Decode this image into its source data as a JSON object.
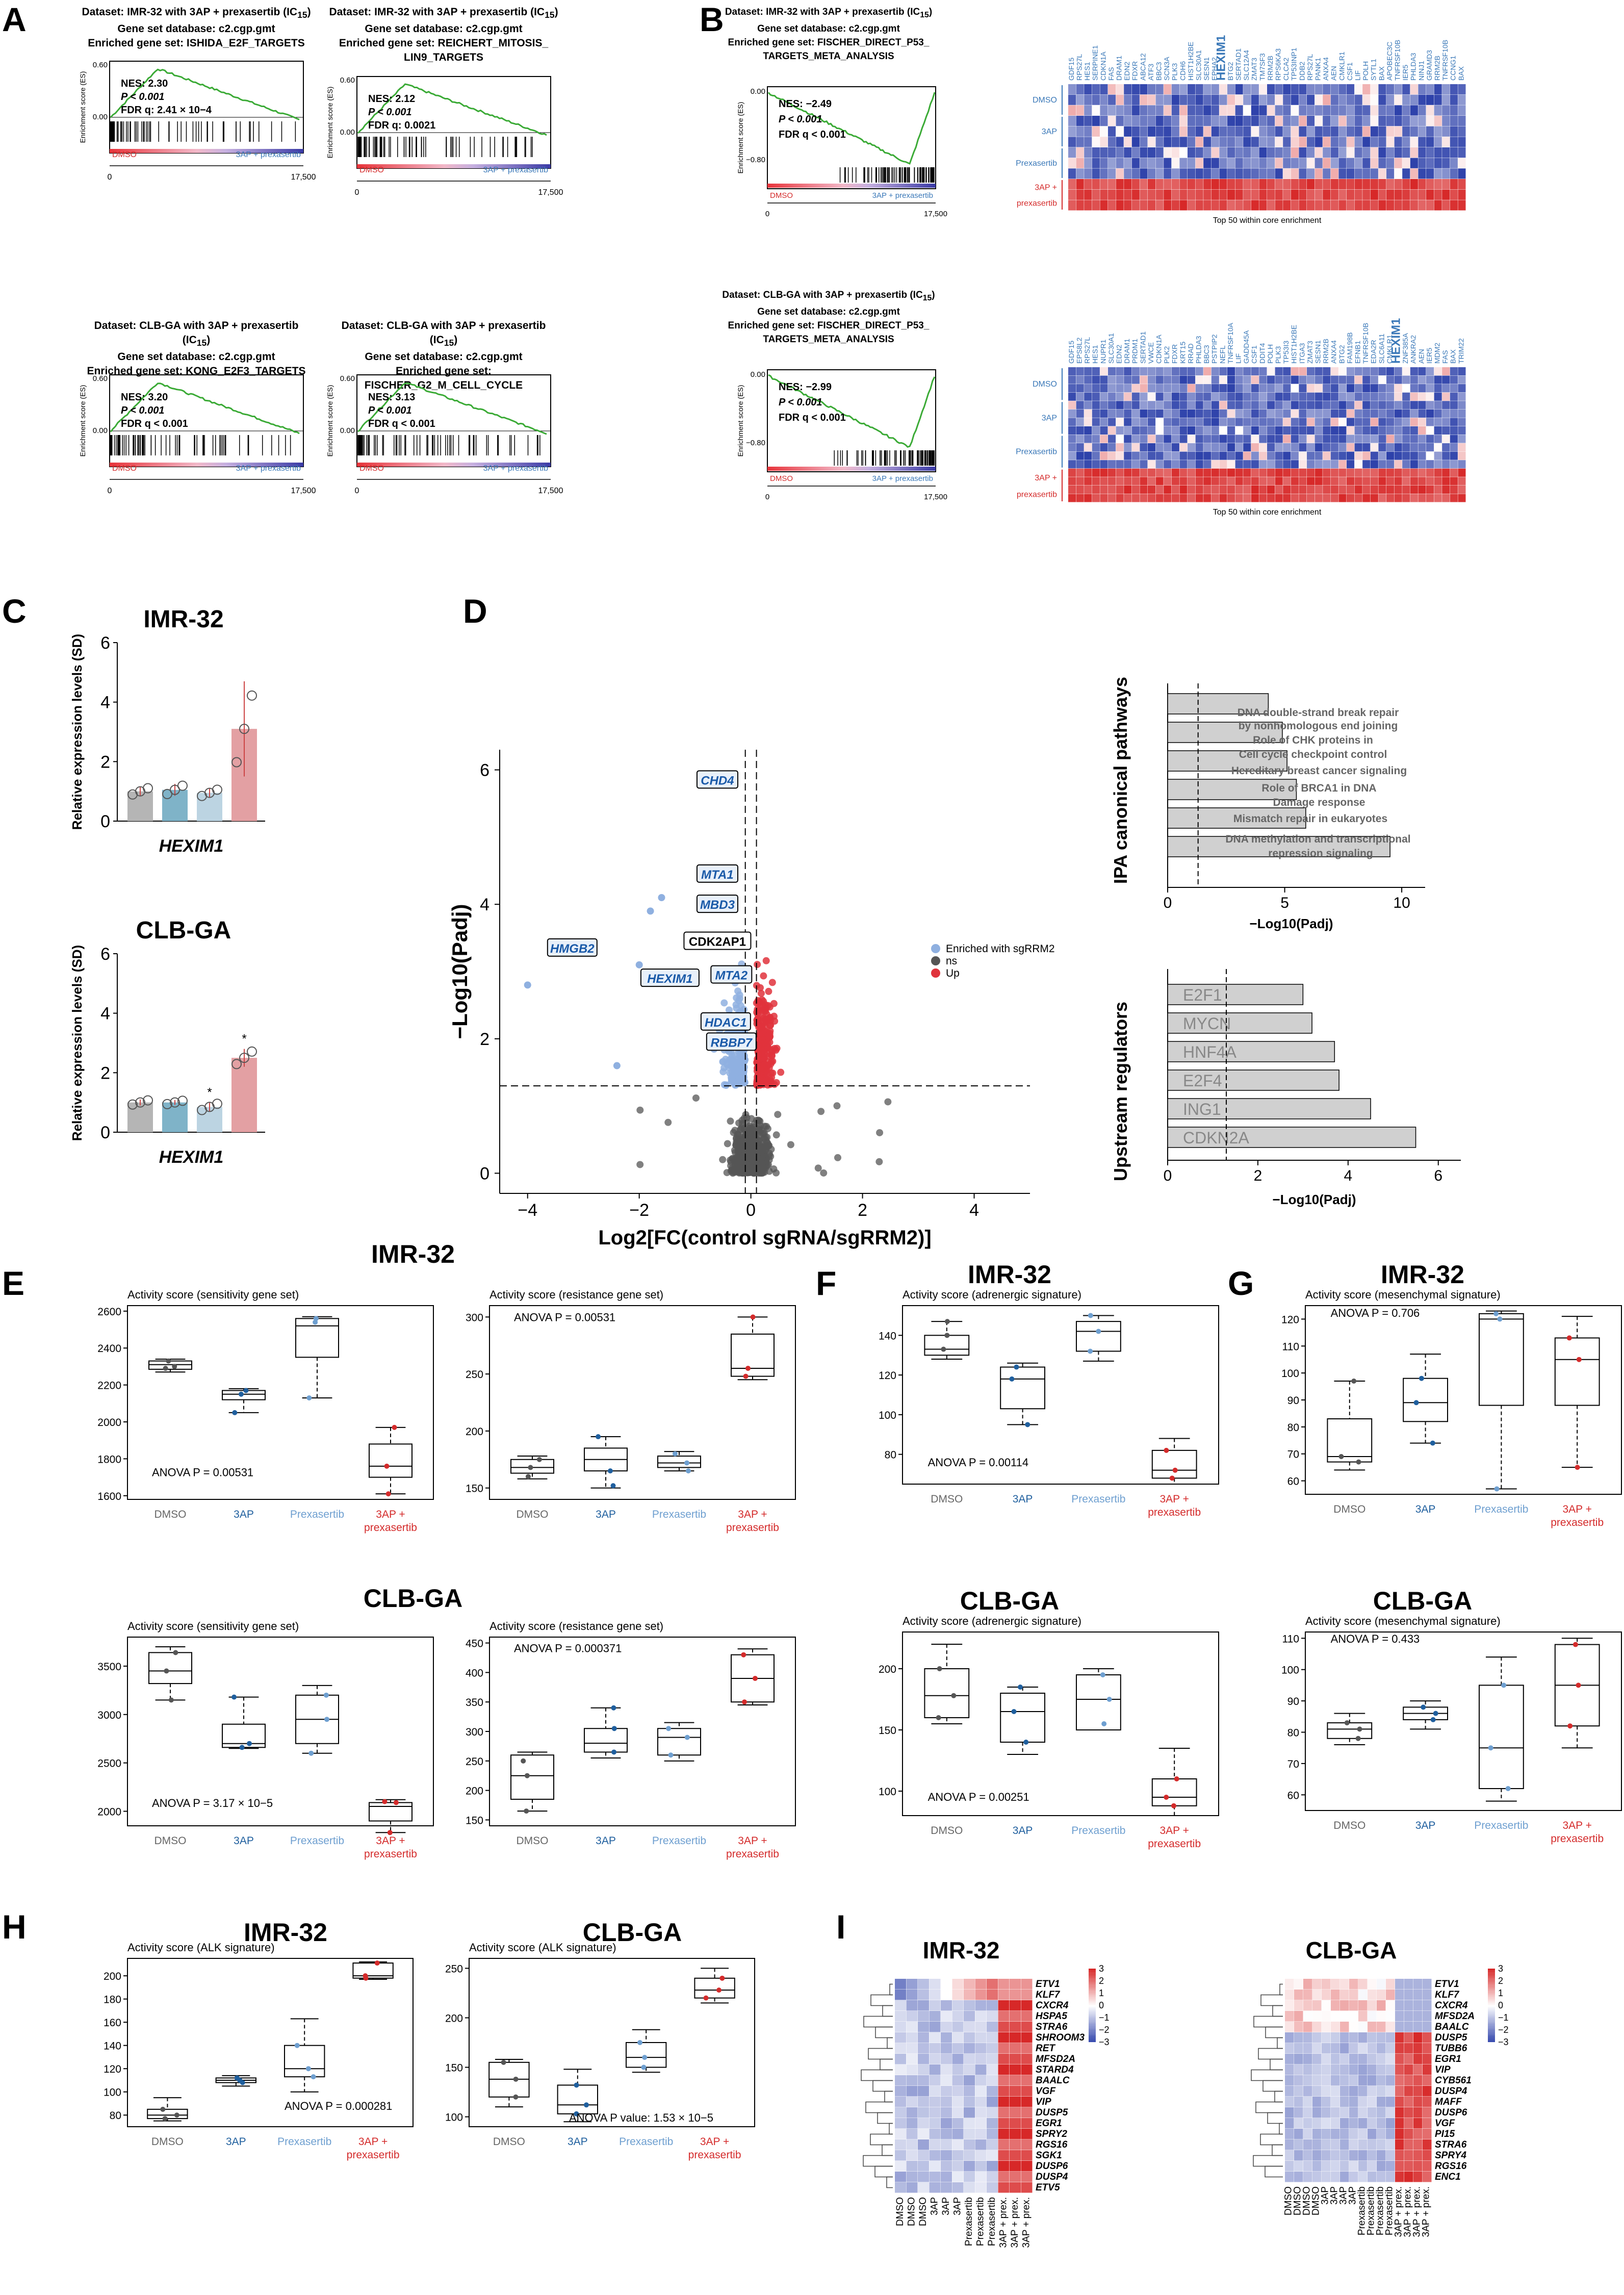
{
  "figure_letters": [
    "A",
    "B",
    "C",
    "D",
    "E",
    "F",
    "G",
    "H",
    "I"
  ],
  "panelA": {
    "plots": [
      {
        "dataset": "Dataset: IMR-32 with 3AP + prexasertib (IC",
        "ic": "15",
        ")": ")",
        "database": "Gene set database: c2.cgp.gmt",
        "geneset": "Enriched gene set: ISHIDA_E2F_TARGETS",
        "nes": "NES: 2.30",
        "p": "P < 0.001",
        "fdr": "FDR q: 2.41 × 10−4",
        "ymax": "0.60",
        "yzero": "0.00"
      },
      {
        "dataset": "Dataset: IMR-32 with 3AP + prexasertib (IC",
        "ic": "15",
        "database": "Gene set database: c2.cgp.gmt",
        "geneset": "Enriched gene set: REICHERT_MITOSIS_",
        "geneset2": "LIN9_TARGETS",
        "nes": "NES: 2.12",
        "p": "P < 0.001",
        "fdr": "FDR q: 0.0021",
        "ymax": "0.60",
        "yzero": "0.00"
      },
      {
        "dataset": "Dataset: CLB-GA with 3AP + prexasertib (IC",
        "ic": "15",
        "database": "Gene set database: c2.cgp.gmt",
        "geneset": "Enriched gene set: KONG_E2F3_TARGETS",
        "nes": "NES: 3.20",
        "p": "P < 0.001",
        "fdr": "FDR q < 0.001",
        "ymax": "0.60",
        "yzero": "0.00"
      },
      {
        "dataset": "Dataset: CLB-GA with 3AP + prexasertib (IC",
        "ic": "15",
        "database": "Gene set database: c2.cgp.gmt",
        "geneset": "Enriched gene set: FISCHER_G2_M_CELL_CYCLE",
        "nes": "NES: 3.13",
        "p": "P < 0.001",
        "fdr": "FDR q < 0.001",
        "ymax": "0.60",
        "yzero": "0.00"
      }
    ],
    "ylabel": "Enrichment score (ES)",
    "dmso": "DMSO",
    "treat": "3AP + prexasertib",
    "x0": "0",
    "x1": "17,500"
  },
  "panelB": {
    "plots": [
      {
        "dataset": "Dataset: IMR-32 with 3AP + prexasertib (IC",
        "ic": "15",
        "database": "Gene set database: c2.cgp.gmt",
        "geneset": "Enriched gene set: FISCHER_DIRECT_P53_",
        "geneset2": "TARGETS_META_ANALYSIS",
        "nes": "NES: −2.49",
        "p": "P < 0.001",
        "fdr": "FDR q < 0.001",
        "ymax": "0.00",
        "ymin": "−0.80"
      },
      {
        "dataset": "Dataset: CLB-GA with 3AP + prexasertib (IC",
        "ic": "15",
        "database": "Gene set database: c2.cgp.gmt",
        "geneset": "Enriched gene set: FISCHER_DIRECT_P53_",
        "geneset2": "TARGETS_META_ANALYSIS",
        "nes": "NES: −2.99",
        "p": "P < 0.001",
        "fdr": "FDR q < 0.001",
        "ymax": "0.00",
        "ymin": "−0.80"
      }
    ],
    "heatmap_caption": "Top 50 within core enrichment",
    "groups": [
      "DMSO",
      "3AP",
      "Prexasertib",
      "3AP +",
      "prexasertib"
    ],
    "genes_top": [
      "GDF15",
      "RPS27L",
      "HES1",
      "SERPINE1",
      "CDKN1A",
      "FAS",
      "DRAM1",
      "EDN2",
      "FDXR",
      "ABCA12",
      "ATF3",
      "BBC3",
      "SCN3A",
      "PLK3",
      "CDH6",
      "HIST1H2BE",
      "SLC30A1",
      "SESN1",
      "EPHA2",
      "HEXIM1",
      "BTG2",
      "SERTAD1",
      "SLC12A4",
      "ZMAT3",
      "TM7SF3",
      "RRM2B",
      "RPS6KA3",
      "CLCA2",
      "TP53INP1",
      "DDB2",
      "RPS27L",
      "PANK1",
      "ANXA4",
      "AEN",
      "CMKLR1",
      "CSF1",
      "LIF",
      "POLH",
      "SYTL1",
      "BAX",
      "APOBEC3C",
      "TNFRSF10B",
      "IER5",
      "PHLDA3",
      "NINJ1",
      "GRAMD3",
      "RRM2B",
      "TNFRSF10B",
      "CCNG1",
      "BAX"
    ],
    "genes_bottom": [
      "GDF15",
      "EPS8L2",
      "RPS27L",
      "HES1",
      "NUPR1",
      "SLC30A1",
      "EDN2",
      "DRAM1",
      "PRDM1",
      "SERTAD1",
      "VWCE",
      "CDKN1A",
      "PLK2",
      "FDXR",
      "KRT15",
      "RRAD",
      "PHLDA3",
      "BBC3",
      "PSTPIP2",
      "NEFL",
      "TNFRSF10A",
      "LIF",
      "GADD45A",
      "CSF1",
      "DDIT4",
      "POLH",
      "PLK3",
      "TP53I3",
      "HIST1H2BE",
      "ITGA3",
      "ZMAT3",
      "SESN1",
      "RRM2B",
      "ANXA4",
      "BTG2",
      "FAM198B",
      "EFNB1",
      "TNFRSF10B",
      "EDA2R",
      "SLC6A11",
      "CMKLR1",
      "HEXIM1",
      "ZNF385A",
      "ANKRA2",
      "AEN",
      "IER5",
      "MDM2",
      "FAS",
      "BAX",
      "TRIM22"
    ],
    "x0": "0",
    "x1": "17,500"
  },
  "panelC": {
    "titles": [
      "IMR-32",
      "CLB-GA"
    ],
    "ylabel": "Relative expression levels (SD)",
    "gene": "HEXIM1",
    "yticks": [
      "0",
      "2",
      "4",
      "6"
    ],
    "chart_data": [
      {
        "type": "bar",
        "title": "IMR-32",
        "xlabel": "HEXIM1",
        "ylabel": "Relative expression levels (SD)",
        "categories": [
          "DMSO",
          "3AP",
          "Prexasertib",
          "3AP + prexasertib"
        ],
        "values": [
          1.0,
          1.05,
          0.95,
          3.1
        ],
        "errors": [
          0.15,
          0.2,
          0.15,
          1.6
        ],
        "ylim": [
          0,
          6
        ]
      },
      {
        "type": "bar",
        "title": "CLB-GA",
        "xlabel": "HEXIM1",
        "ylabel": "Relative expression levels (SD)",
        "categories": [
          "DMSO",
          "3AP",
          "Prexasertib",
          "3AP + prexasertib"
        ],
        "values": [
          1.0,
          1.0,
          0.85,
          2.5
        ],
        "errors": [
          0.1,
          0.08,
          0.15,
          0.3
        ],
        "ylim": [
          0,
          6
        ]
      }
    ],
    "star": "*"
  },
  "panelD": {
    "ylabel": "−Log10(Padj)",
    "xlabel": "Log2[FC(control sgRNA/sgRRM2)]",
    "xticks": [
      "−4",
      "−2",
      "0",
      "2",
      "4"
    ],
    "yticks": [
      "0",
      "2",
      "4",
      "6"
    ],
    "legend": [
      "Enriched with sgRRM2",
      "ns",
      "Up"
    ],
    "labels": [
      "CHD4",
      "MTA1",
      "MBD3",
      "CDK2AP1",
      "HMGB2",
      "MTA2",
      "HEXIM1",
      "HDAC1",
      "RBBP7"
    ],
    "ipa_title": "IPA canonical pathways",
    "ipa_terms": [
      "DNA double-strand break repair",
      "by nonhomologous end joining",
      "Role of CHK proteins in",
      "Cell cycle checkpoint control",
      "Hereditary breast cancer signaling",
      "Role of BRCA1 in DNA",
      "Damage response",
      "Mismatch repair in eukaryotes",
      "DNA methylation and transcriptional",
      "repression signaling"
    ],
    "ipa_xticks": [
      "0",
      "5",
      "10"
    ],
    "ipa_xlabel": "−Log10(Padj)",
    "ur_title": "Upstream regulators",
    "ur_terms": [
      "E2F1",
      "MYCN",
      "HNF4A",
      "E2F4",
      "ING1",
      "CDKN2A"
    ],
    "ur_xticks": [
      "0",
      "2",
      "4",
      "6"
    ],
    "ur_xlabel": "−Log10(Padj)",
    "ipa_chart": {
      "type": "bar",
      "values": [
        4.3,
        4.9,
        5.1,
        5.5,
        5.9,
        9.5
      ]
    },
    "ur_chart": {
      "type": "bar",
      "categories": [
        "E2F1",
        "MYCN",
        "HNF4A",
        "E2F4",
        "ING1",
        "CDKN2A"
      ],
      "values": [
        3.0,
        3.2,
        3.7,
        3.8,
        4.5,
        5.5
      ]
    }
  },
  "boxes": {
    "cats": [
      "DMSO",
      "3AP",
      "Prexasertib",
      "3AP +",
      "prexasertib"
    ],
    "E": {
      "title1": "IMR-32",
      "title2": "CLB-GA",
      "p1": {
        "title": "Activity score (sensitivity gene set)",
        "anova": "ANOVA P = 0.00531",
        "yticks": [
          "1600",
          "1800",
          "2000",
          "2200",
          "2400",
          "2600"
        ]
      },
      "p2": {
        "title": "Activity score (resistance gene set)",
        "anova": "ANOVA P = 0.00531",
        "yticks": [
          "150",
          "200",
          "250",
          "300"
        ]
      },
      "p3": {
        "title": "Activity score (sensitivity gene set)",
        "anova": "ANOVA P = 3.17 × 10−5",
        "yticks": [
          "2000",
          "2500",
          "3000",
          "3500"
        ]
      },
      "p4": {
        "title": "Activity score (resistance gene set)",
        "anova": "ANOVA P = 0.000371",
        "yticks": [
          "150",
          "200",
          "250",
          "300",
          "350",
          "400",
          "450"
        ]
      }
    },
    "F": {
      "title1": "IMR-32",
      "title2": "CLB-GA",
      "p1": {
        "title": "Activity score (adrenergic signature)",
        "anova": "ANOVA P = 0.00114",
        "yticks": [
          "80",
          "100",
          "120",
          "140"
        ]
      },
      "p2": {
        "title": "Activity score (adrenergic signature)",
        "anova": "ANOVA P = 0.00251",
        "yticks": [
          "100",
          "150",
          "200"
        ]
      }
    },
    "G": {
      "title1": "IMR-32",
      "title2": "CLB-GA",
      "p1": {
        "title": "Activity score (mesenchymal signature)",
        "anova": "ANOVA P = 0.706",
        "yticks": [
          "60",
          "70",
          "80",
          "90",
          "100",
          "110",
          "120"
        ]
      },
      "p2": {
        "title": "Activity score (mesenchymal signature)",
        "anova": "ANOVA P = 0.433",
        "yticks": [
          "60",
          "70",
          "80",
          "90",
          "100",
          "110"
        ]
      }
    },
    "H": {
      "title1": "IMR-32",
      "title2": "CLB-GA",
      "p1": {
        "title": "Activity score (ALK signature)",
        "anova": "ANOVA P = 0.000281",
        "yticks": [
          "80",
          "100",
          "120",
          "140",
          "160",
          "180",
          "200"
        ]
      },
      "p2": {
        "title": "Activity score (ALK signature)",
        "anova": "ANOVA P value: 1.53 × 10−5",
        "yticks": [
          "100",
          "150",
          "200",
          "250"
        ]
      }
    }
  },
  "panelI": {
    "titles": [
      "IMR-32",
      "CLB-GA"
    ],
    "genes_left": [
      "ETV1",
      "KLF7",
      "CXCR4",
      "HSPA5",
      "STRA6",
      "SHROOM3",
      "RET",
      "MFSD2A",
      "STARD4",
      "BAALC",
      "VGF",
      "VIP",
      "DUSP5",
      "EGR1",
      "SPRY2",
      "RGS16",
      "SGK1",
      "DUSP6",
      "DUSP4",
      "ETV5"
    ],
    "genes_right": [
      "ETV1",
      "KLF7",
      "CXCR4",
      "MFSD2A",
      "BAALC",
      "DUSP5",
      "TUBB6",
      "EGR1",
      "VIP",
      "CYB561",
      "DUSP4",
      "MAFF",
      "DUSP6",
      "VGF",
      "PI15",
      "STRA6",
      "SPRY4",
      "RGS16",
      "ENC1"
    ],
    "cols_left": [
      "DMSO",
      "DMSO",
      "DMSO",
      "3AP",
      "3AP",
      "3AP",
      "Prexasertib",
      "Prexasertib",
      "Prexasertib",
      "3AP + prex.",
      "3AP + prex.",
      "3AP + prex."
    ],
    "cols_right": [
      "DMSO",
      "DMSO",
      "DMSO",
      "DMSO",
      "3AP",
      "3AP",
      "3AP",
      "3AP",
      "Prexasertib",
      "Prexasertib",
      "Prexasertib",
      "Prexasertib",
      "3AP + prex.",
      "3AP + prex.",
      "3AP + prex.",
      "3AP + prex."
    ],
    "scale": [
      "3",
      "2",
      "1",
      "0",
      "−1",
      "−2",
      "−3"
    ]
  },
  "colors": {
    "blue": "#3a78b8",
    "lightblue": "#6e9fd0",
    "red": "#d42b2b",
    "green": "#3aaa35",
    "grey": "#bbbbbb"
  }
}
